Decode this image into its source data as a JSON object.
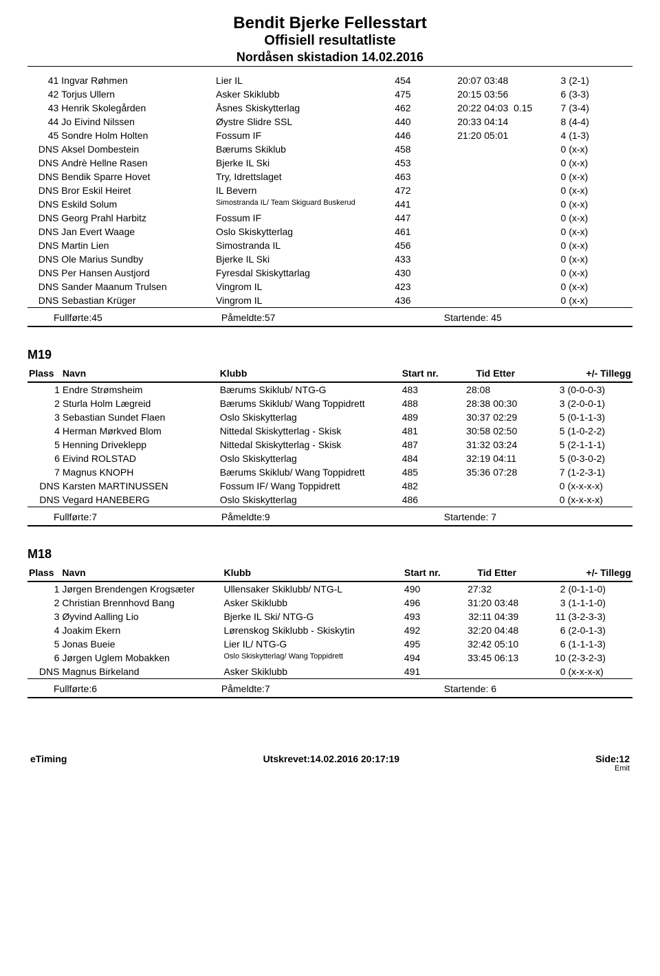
{
  "header": {
    "main": "Bendit Bjerke Fellesstart",
    "sub": "Offisiell resultatliste",
    "venue": "Nordåsen skistadion 14.02.2016"
  },
  "top_rows": [
    {
      "plass": "41",
      "navn": "Ingvar Røhmen",
      "klubb": "Lier IL",
      "start": "454",
      "tid": "20:07",
      "etter": "03:48",
      "pm": "3",
      "tillegg": "(2-1)"
    },
    {
      "plass": "42",
      "navn": "Torjus Ullern",
      "klubb": "Asker Skiklubb",
      "start": "475",
      "tid": "20:15",
      "etter": "03:56",
      "pm": "6",
      "tillegg": "(3-3)"
    },
    {
      "plass": "43",
      "navn": "Henrik Skolegården",
      "klubb": "Åsnes Skiskytterlag",
      "start": "462",
      "tid": "20:22",
      "etter": "04:03",
      "etter_extra": "0.15",
      "pm": "7",
      "tillegg": "(3-4)"
    },
    {
      "plass": "44",
      "navn": "Jo Eivind Nilssen",
      "klubb": "Øystre Slidre SSL",
      "start": "440",
      "tid": "20:33",
      "etter": "04:14",
      "pm": "8",
      "tillegg": "(4-4)"
    },
    {
      "plass": "45",
      "navn": "Sondre Holm Holten",
      "klubb": "Fossum IF",
      "start": "446",
      "tid": "21:20",
      "etter": "05:01",
      "pm": "4",
      "tillegg": "(1-3)"
    },
    {
      "plass": "DNS",
      "navn": "Aksel Dombestein",
      "klubb": "Bærums Skiklub",
      "start": "458",
      "tid": "",
      "etter": "",
      "pm": "0",
      "tillegg": "(x-x)"
    },
    {
      "plass": "DNS",
      "navn": "Andrè Hellne Rasen",
      "klubb": "Bjerke IL Ski",
      "start": "453",
      "tid": "",
      "etter": "",
      "pm": "0",
      "tillegg": "(x-x)"
    },
    {
      "plass": "DNS",
      "navn": "Bendik Sparre Hovet",
      "klubb": "Try, Idrettslaget",
      "start": "463",
      "tid": "",
      "etter": "",
      "pm": "0",
      "tillegg": "(x-x)"
    },
    {
      "plass": "DNS",
      "navn": "Bror Eskil Heiret",
      "klubb": "IL Bevern",
      "start": "472",
      "tid": "",
      "etter": "",
      "pm": "0",
      "tillegg": "(x-x)"
    },
    {
      "plass": "DNS",
      "navn": "Eskild Solum",
      "klubb": "Simostranda IL/ Team Skiguard Buskerud",
      "klubb_small": true,
      "start": "441",
      "tid": "",
      "etter": "",
      "pm": "0",
      "tillegg": "(x-x)"
    },
    {
      "plass": "DNS",
      "navn": "Georg Prahl Harbitz",
      "klubb": "Fossum IF",
      "start": "447",
      "tid": "",
      "etter": "",
      "pm": "0",
      "tillegg": "(x-x)"
    },
    {
      "plass": "DNS",
      "navn": "Jan Evert Waage",
      "klubb": "Oslo Skiskytterlag",
      "start": "461",
      "tid": "",
      "etter": "",
      "pm": "0",
      "tillegg": "(x-x)"
    },
    {
      "plass": "DNS",
      "navn": "Martin Lien",
      "klubb": "Simostranda IL",
      "start": "456",
      "tid": "",
      "etter": "",
      "pm": "0",
      "tillegg": "(x-x)"
    },
    {
      "plass": "DNS",
      "navn": "Ole Marius Sundby",
      "klubb": "Bjerke IL Ski",
      "start": "433",
      "tid": "",
      "etter": "",
      "pm": "0",
      "tillegg": "(x-x)"
    },
    {
      "plass": "DNS",
      "navn": "Per Hansen Austjord",
      "klubb": "Fyresdal Skiskyttarlag",
      "start": "430",
      "tid": "",
      "etter": "",
      "pm": "0",
      "tillegg": "(x-x)"
    },
    {
      "plass": "DNS",
      "navn": "Sander Maanum Trulsen",
      "klubb": "Vingrom IL",
      "start": "423",
      "tid": "",
      "etter": "",
      "pm": "0",
      "tillegg": "(x-x)"
    },
    {
      "plass": "DNS",
      "navn": "Sebastian Krüger",
      "klubb": "Vingrom IL",
      "start": "436",
      "tid": "",
      "etter": "",
      "pm": "0",
      "tillegg": "(x-x)"
    }
  ],
  "top_summary": {
    "full": "Fullførte:45",
    "pam": "Påmeldte:57",
    "start": "Startende: 45"
  },
  "cols": {
    "plass": "Plass",
    "navn": "Navn",
    "klubb": "Klubb",
    "start": "Start nr.",
    "tid": "Tid",
    "etter": "Etter",
    "pm_tillegg": "+/- Tillegg"
  },
  "m19": {
    "title": "M19",
    "rows": [
      {
        "plass": "1",
        "navn": "Endre Strømsheim",
        "klubb": "Bærums Skiklub/ NTG-G",
        "start": "483",
        "tid": "28:08",
        "etter": "",
        "pm": "3",
        "tillegg": "(0-0-0-3)"
      },
      {
        "plass": "2",
        "navn": "Sturla Holm Lægreid",
        "klubb": "Bærums Skiklub/ Wang Toppidrett",
        "start": "488",
        "tid": "28:38",
        "etter": "00:30",
        "pm": "3",
        "tillegg": "(2-0-0-1)"
      },
      {
        "plass": "3",
        "navn": "Sebastian Sundet Flaen",
        "klubb": "Oslo Skiskytterlag",
        "start": "489",
        "tid": "30:37",
        "etter": "02:29",
        "pm": "5",
        "tillegg": "(0-1-1-3)"
      },
      {
        "plass": "4",
        "navn": "Herman Mørkved Blom",
        "klubb": "Nittedal Skiskytterlag - Skisk",
        "start": "481",
        "tid": "30:58",
        "etter": "02:50",
        "pm": "5",
        "tillegg": "(1-0-2-2)"
      },
      {
        "plass": "5",
        "navn": "Henning Driveklepp",
        "klubb": "Nittedal Skiskytterlag - Skisk",
        "start": "487",
        "tid": "31:32",
        "etter": "03:24",
        "pm": "5",
        "tillegg": "(2-1-1-1)"
      },
      {
        "plass": "6",
        "navn": "Eivind ROLSTAD",
        "klubb": "Oslo Skiskytterlag",
        "start": "484",
        "tid": "32:19",
        "etter": "04:11",
        "pm": "5",
        "tillegg": "(0-3-0-2)"
      },
      {
        "plass": "7",
        "navn": "Magnus KNOPH",
        "klubb": "Bærums Skiklub/ Wang Toppidrett",
        "start": "485",
        "tid": "35:36",
        "etter": "07:28",
        "pm": "7",
        "tillegg": "(1-2-3-1)"
      },
      {
        "plass": "DNS",
        "navn": "Karsten MARTINUSSEN",
        "klubb": "Fossum IF/ Wang Toppidrett",
        "start": "482",
        "tid": "",
        "etter": "",
        "pm": "0",
        "tillegg": "(x-x-x-x)"
      },
      {
        "plass": "DNS",
        "navn": "Vegard HANEBERG",
        "klubb": "Oslo Skiskytterlag",
        "start": "486",
        "tid": "",
        "etter": "",
        "pm": "0",
        "tillegg": "(x-x-x-x)"
      }
    ],
    "summary": {
      "full": "Fullførte:7",
      "pam": "Påmeldte:9",
      "start": "Startende: 7"
    }
  },
  "m18": {
    "title": "M18",
    "rows": [
      {
        "plass": "1",
        "navn": "Jørgen Brendengen Krogsæter",
        "klubb": "Ullensaker Skiklubb/ NTG-L",
        "start": "490",
        "tid": "27:32",
        "etter": "",
        "pm": "2",
        "tillegg": "(0-1-1-0)"
      },
      {
        "plass": "2",
        "navn": "Christian Brennhovd Bang",
        "klubb": "Asker Skiklubb",
        "start": "496",
        "tid": "31:20",
        "etter": "03:48",
        "pm": "3",
        "tillegg": "(1-1-1-0)"
      },
      {
        "plass": "3",
        "navn": "Øyvind Aalling Lio",
        "klubb": "Bjerke IL Ski/ NTG-G",
        "start": "493",
        "tid": "32:11",
        "etter": "04:39",
        "pm": "11",
        "tillegg": "(3-2-3-3)"
      },
      {
        "plass": "4",
        "navn": "Joakim Ekern",
        "klubb": "Lørenskog Skiklubb - Skiskytin",
        "start": "492",
        "tid": "32:20",
        "etter": "04:48",
        "pm": "6",
        "tillegg": "(2-0-1-3)"
      },
      {
        "plass": "5",
        "navn": "Jonas Bueie",
        "klubb": "Lier IL/ NTG-G",
        "start": "495",
        "tid": "32:42",
        "etter": "05:10",
        "pm": "6",
        "tillegg": "(1-1-1-3)"
      },
      {
        "plass": "6",
        "navn": "Jørgen Uglem Mobakken",
        "klubb": "Oslo Skiskytterlag/ Wang Toppidrett",
        "klubb_small": true,
        "start": "494",
        "tid": "33:45",
        "etter": "06:13",
        "pm": "10",
        "tillegg": "(2-3-2-3)"
      },
      {
        "plass": "DNS",
        "navn": "Magnus Birkeland",
        "klubb": "Asker Skiklubb",
        "start": "491",
        "tid": "",
        "etter": "",
        "pm": "0",
        "tillegg": "(x-x-x-x)"
      }
    ],
    "summary": {
      "full": "Fullførte:6",
      "pam": "Påmeldte:7",
      "start": "Startende: 6"
    }
  },
  "footer": {
    "left": "eTiming",
    "center": "Utskrevet:14.02.2016 20:17:19",
    "right": "Side:12",
    "emit": "Emit"
  }
}
